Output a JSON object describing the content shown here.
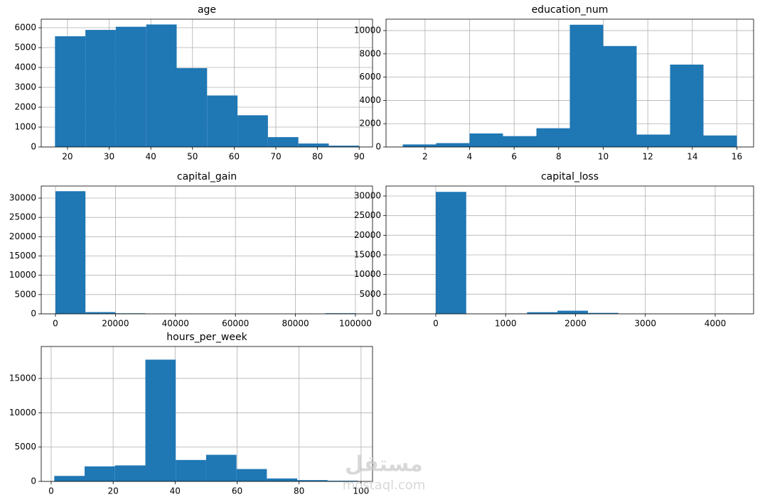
{
  "chart_data": [
    {
      "type": "histogram",
      "title": "age",
      "color": "#1f77b4",
      "grid": true,
      "bins": [
        17,
        24.3,
        31.6,
        38.9,
        46.2,
        53.5,
        60.8,
        68.1,
        75.4,
        82.7,
        90
      ],
      "values": [
        5570,
        5890,
        6048,
        6163,
        3967,
        2591,
        1595,
        496,
        174,
        66
      ],
      "xlim": [
        13.7,
        93.2
      ],
      "xticks": [
        20,
        30,
        40,
        50,
        60,
        70,
        80,
        90
      ],
      "ylim": [
        0,
        6430
      ],
      "yticks": [
        0,
        1000,
        2000,
        3000,
        4000,
        5000,
        6000
      ]
    },
    {
      "type": "histogram",
      "title": "education_num",
      "color": "#1f77b4",
      "grid": true,
      "bins": [
        1,
        2.5,
        4,
        5.5,
        7,
        8.5,
        10,
        11.5,
        13,
        14.5,
        16
      ],
      "values": [
        219,
        333,
        1160,
        933,
        1608,
        10501,
        8673,
        1067,
        7078,
        989
      ],
      "xlim": [
        0.25,
        16.75
      ],
      "xticks": [
        2,
        4,
        6,
        8,
        10,
        12,
        14,
        16
      ],
      "ylim": [
        0,
        10980
      ],
      "yticks": [
        0,
        2000,
        4000,
        6000,
        8000,
        10000
      ]
    },
    {
      "type": "histogram",
      "title": "capital_gain",
      "color": "#1f77b4",
      "grid": true,
      "bins": [
        0,
        9999.9,
        19999.8,
        29999.7,
        39999.6,
        49999.5,
        59999.4,
        69999.3,
        79999.2,
        89999.1,
        99999
      ],
      "values": [
        31790,
        447,
        137,
        0,
        0,
        0,
        0,
        0,
        0,
        159
      ],
      "xlim": [
        -4740,
        105700
      ],
      "xticks": [
        0,
        20000,
        40000,
        60000,
        80000,
        100000
      ],
      "ylim": [
        0,
        33130
      ],
      "yticks": [
        0,
        5000,
        10000,
        15000,
        20000,
        25000,
        30000
      ]
    },
    {
      "type": "histogram",
      "title": "capital_loss",
      "color": "#1f77b4",
      "grid": true,
      "bins": [
        0,
        435.6,
        871.2,
        1306.8,
        1742.4,
        2178,
        2613.6,
        3049.2,
        3484.8,
        3920.4,
        4356
      ],
      "values": [
        31042,
        0,
        57,
        414,
        795,
        238,
        0,
        0,
        3,
        12
      ],
      "xlim": [
        -712,
        4550
      ],
      "xticks": [
        0,
        1000,
        2000,
        3000,
        4000
      ],
      "ylim": [
        0,
        32530
      ],
      "yticks": [
        0,
        5000,
        10000,
        15000,
        20000,
        25000,
        30000
      ]
    },
    {
      "type": "histogram",
      "title": "hours_per_week",
      "color": "#1f77b4",
      "grid": true,
      "bins": [
        1,
        10.8,
        20.6,
        30.4,
        40.2,
        50,
        59.8,
        69.6,
        79.4,
        89.2,
        99
      ],
      "values": [
        800,
        2190,
        2330,
        17735,
        3120,
        3875,
        1800,
        430,
        190,
        100
      ],
      "xlim": [
        -3.2,
        103.7
      ],
      "xticks": [
        0,
        20,
        40,
        60,
        80,
        100
      ],
      "ylim": [
        0,
        19650
      ],
      "yticks": [
        0,
        5000,
        10000,
        15000
      ]
    }
  ],
  "watermark": [
    "مستقل",
    "mostaql.com"
  ]
}
